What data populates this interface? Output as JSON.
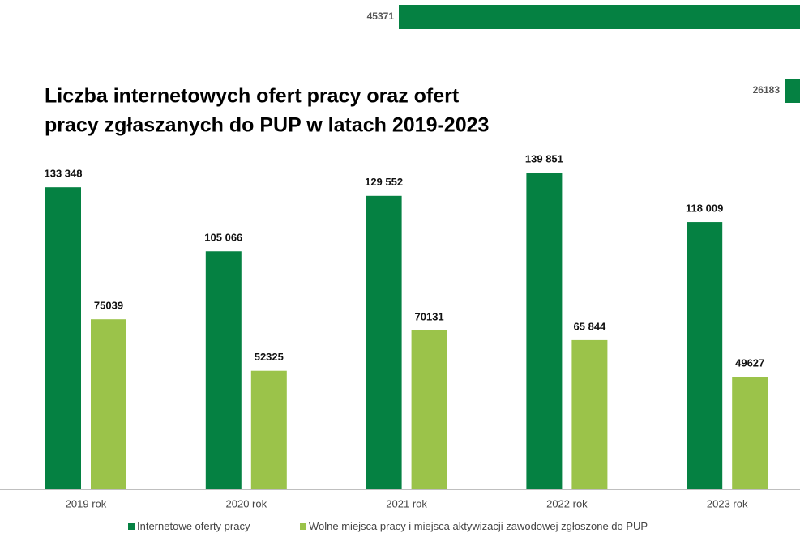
{
  "chart_data": [
    {
      "type": "bar",
      "title": [
        "Liczba internetowych ofert pracy oraz ofert",
        "pracy zgłaszanych do PUP w latach 2019-2023"
      ],
      "categories": [
        "2019 rok",
        "2020 rok",
        "2021 rok",
        "2022 rok",
        "2023 rok"
      ],
      "series": [
        {
          "name": "Internetowe oferty pracy",
          "color": "#058142",
          "values": [
            133348,
            105066,
            129552,
            139851,
            118009
          ],
          "value_labels": [
            "133 348",
            "105 066",
            "129 552",
            "139 851",
            "118 009"
          ]
        },
        {
          "name": "Wolne miejsca pracy i miejsca aktywizacji zawodowej zgłoszone do PUP",
          "color": "#9bc34a",
          "values": [
            75039,
            52325,
            70131,
            65844,
            49627
          ],
          "value_labels": [
            "75039",
            "52325",
            "70131",
            "65 844",
            "49627"
          ]
        }
      ],
      "legend": "bottom"
    },
    {
      "type": "hbar",
      "color": "#058142",
      "values": [
        45371,
        26183
      ]
    }
  ]
}
